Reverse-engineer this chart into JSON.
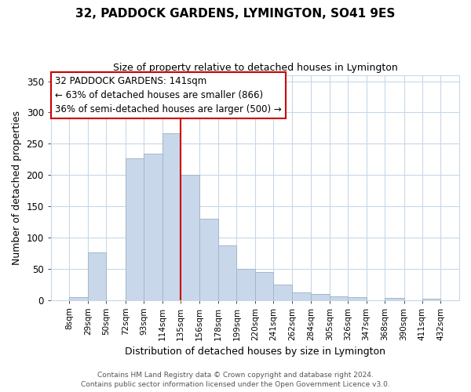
{
  "title": "32, PADDOCK GARDENS, LYMINGTON, SO41 9ES",
  "subtitle": "Size of property relative to detached houses in Lymington",
  "xlabel": "Distribution of detached houses by size in Lymington",
  "ylabel": "Number of detached properties",
  "bar_labels": [
    "8sqm",
    "29sqm",
    "50sqm",
    "72sqm",
    "93sqm",
    "114sqm",
    "135sqm",
    "156sqm",
    "178sqm",
    "199sqm",
    "220sqm",
    "241sqm",
    "262sqm",
    "284sqm",
    "305sqm",
    "326sqm",
    "347sqm",
    "368sqm",
    "390sqm",
    "411sqm",
    "432sqm"
  ],
  "annotation_title": "32 PADDOCK GARDENS: 141sqm",
  "annotation_line2": "← 63% of detached houses are smaller (866)",
  "annotation_line3": "36% of semi-detached houses are larger (500) →",
  "annotation_box_color": "#ffffff",
  "annotation_box_edge": "#cc0000",
  "bar_color": "#c8d8ea",
  "bar_edge_color": "#a0b8cc",
  "vline_color": "#cc0000",
  "vline_x_index": 6,
  "ylim": [
    0,
    360
  ],
  "yticks": [
    0,
    50,
    100,
    150,
    200,
    250,
    300,
    350
  ],
  "footer1": "Contains HM Land Registry data © Crown copyright and database right 2024.",
  "footer2": "Contains public sector information licensed under the Open Government Licence v3.0.",
  "bin_edges": [
    8,
    29,
    50,
    72,
    93,
    114,
    135,
    156,
    178,
    199,
    220,
    241,
    262,
    284,
    305,
    326,
    347,
    368,
    390,
    411,
    432
  ],
  "bin_counts": [
    5,
    76,
    0,
    226,
    234,
    267,
    200,
    130,
    87,
    50,
    44,
    25,
    12,
    9,
    6,
    4,
    0,
    3,
    0,
    2
  ],
  "grid_color": "#c8d8e8",
  "title_fontsize": 11,
  "subtitle_fontsize": 9,
  "ylabel_fontsize": 9,
  "xlabel_fontsize": 9,
  "tick_fontsize": 7.5,
  "ytick_fontsize": 8.5,
  "footer_fontsize": 6.5,
  "ann_fontsize": 8.5
}
